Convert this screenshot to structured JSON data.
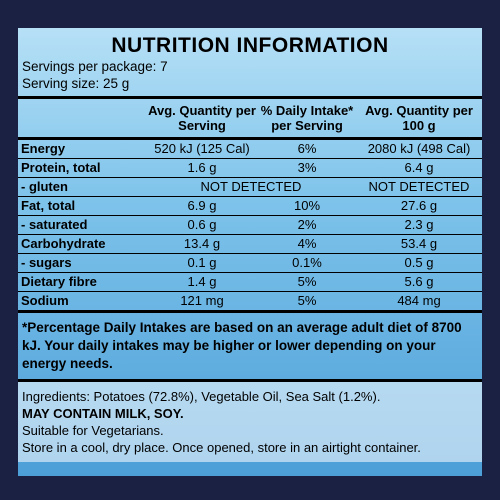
{
  "title": "NUTRITION INFORMATION",
  "servings": [
    "Servings per package: 7",
    "Serving size: 25 g"
  ],
  "table": {
    "header": [
      "Avg. Quantity per Serving",
      "% Daily Intake* per Serving",
      "Avg. Quantity per 100 g"
    ],
    "rows": [
      {
        "label": "Energy",
        "cells": [
          "520 kJ (125 Cal)",
          "6%",
          "2080 kJ (498 Cal)"
        ]
      },
      {
        "label": "Protein, total",
        "cells": [
          "1.6 g",
          "3%",
          "6.4 g"
        ]
      },
      {
        "label": "- gluten",
        "cells": [
          "NOT DETECTED",
          "NOT DETECTED"
        ]
      },
      {
        "label": "Fat, total",
        "cells": [
          "6.9 g",
          "10%",
          "27.6 g"
        ]
      },
      {
        "label": "- saturated",
        "cells": [
          "0.6 g",
          "2%",
          "2.3 g"
        ]
      },
      {
        "label": "Carbohydrate",
        "cells": [
          "13.4 g",
          "4%",
          "53.4 g"
        ]
      },
      {
        "label": "- sugars",
        "cells": [
          "0.1 g",
          "0.1%",
          "0.5 g"
        ]
      },
      {
        "label": "Dietary fibre",
        "cells": [
          "1.4 g",
          "5%",
          "5.6 g"
        ]
      },
      {
        "label": "Sodium",
        "cells": [
          "121 mg",
          "5%",
          "484 mg"
        ]
      }
    ]
  },
  "footnote": "*Percentage Daily Intakes are based on an average adult diet of 8700 kJ. Your daily intakes may be higher or lower depending on your energy needs.",
  "ingredients": [
    "Ingredients: Potatoes (72.8%), Vegetable Oil, Sea Salt (1.2%).",
    "MAY CONTAIN MILK, SOY.",
    "Suitable for Vegetarians.",
    "Store in a cool, dry place. Once opened, store in an airtight container."
  ]
}
